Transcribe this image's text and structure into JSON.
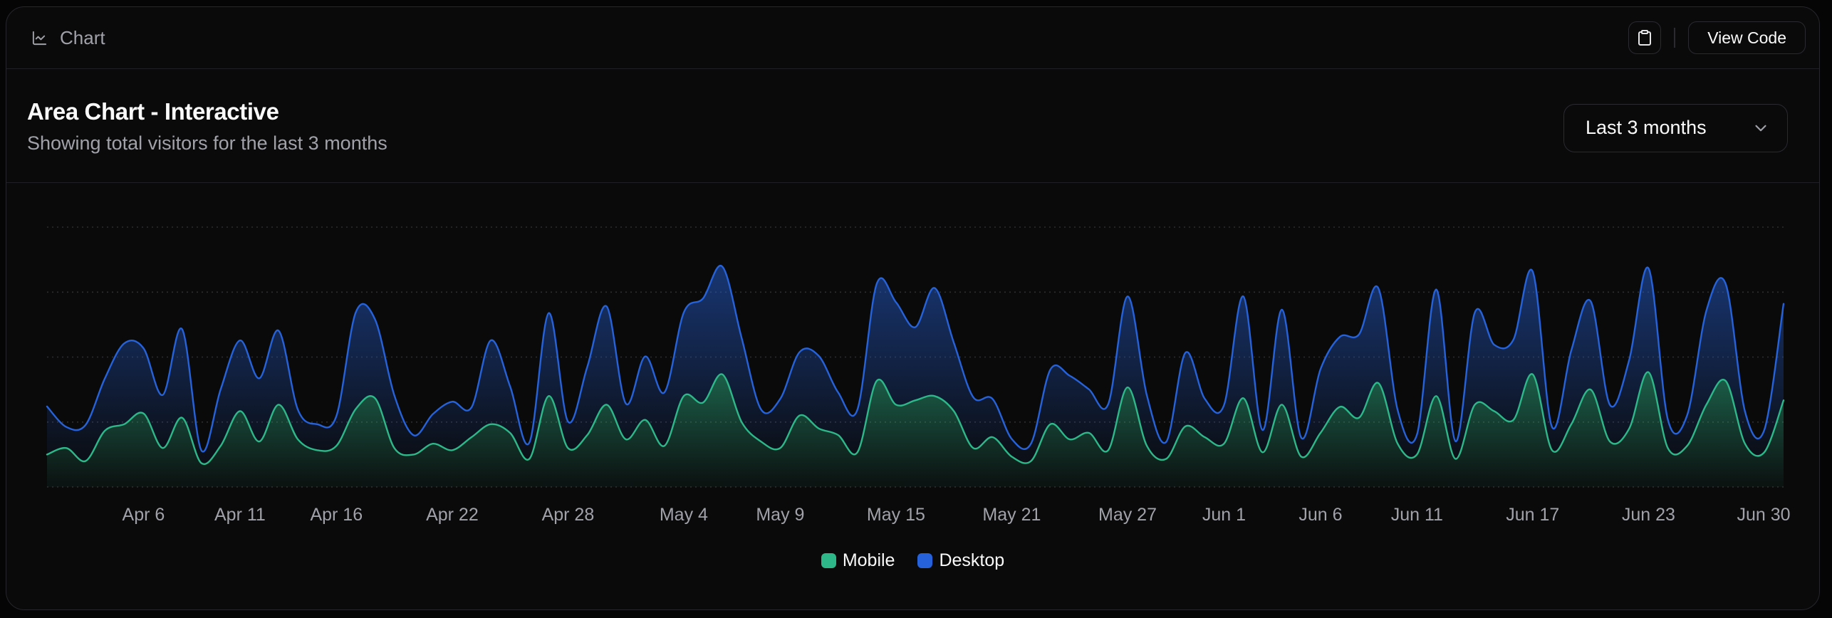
{
  "toolbar": {
    "title": "Chart",
    "view_code_label": "View Code"
  },
  "icons": {
    "toolbar_icon": "chart-line",
    "copy_button_icon": "clipboard",
    "range_select_icon": "chevron-down"
  },
  "card": {
    "title": "Area Chart - Interactive",
    "description": "Showing total visitors for the last 3 months",
    "time_range": {
      "selected": "Last 3 months"
    }
  },
  "chart_data": {
    "type": "area",
    "stacked": true,
    "curve": "natural",
    "grid": "horizontal-dotted",
    "legend_position": "bottom",
    "ylim": [
      0,
      1200
    ],
    "y_gridlines": [
      0,
      300,
      600,
      900,
      1200
    ],
    "x": [
      "2024-04-01",
      "2024-04-02",
      "2024-04-03",
      "2024-04-04",
      "2024-04-05",
      "2024-04-06",
      "2024-04-07",
      "2024-04-08",
      "2024-04-09",
      "2024-04-10",
      "2024-04-11",
      "2024-04-12",
      "2024-04-13",
      "2024-04-14",
      "2024-04-15",
      "2024-04-16",
      "2024-04-17",
      "2024-04-18",
      "2024-04-19",
      "2024-04-20",
      "2024-04-21",
      "2024-04-22",
      "2024-04-23",
      "2024-04-24",
      "2024-04-25",
      "2024-04-26",
      "2024-04-27",
      "2024-04-28",
      "2024-04-29",
      "2024-04-30",
      "2024-05-01",
      "2024-05-02",
      "2024-05-03",
      "2024-05-04",
      "2024-05-05",
      "2024-05-06",
      "2024-05-07",
      "2024-05-08",
      "2024-05-09",
      "2024-05-10",
      "2024-05-11",
      "2024-05-12",
      "2024-05-13",
      "2024-05-14",
      "2024-05-15",
      "2024-05-16",
      "2024-05-17",
      "2024-05-18",
      "2024-05-19",
      "2024-05-20",
      "2024-05-21",
      "2024-05-22",
      "2024-05-23",
      "2024-05-24",
      "2024-05-25",
      "2024-05-26",
      "2024-05-27",
      "2024-05-28",
      "2024-05-29",
      "2024-05-30",
      "2024-05-31",
      "2024-06-01",
      "2024-06-02",
      "2024-06-03",
      "2024-06-04",
      "2024-06-05",
      "2024-06-06",
      "2024-06-07",
      "2024-06-08",
      "2024-06-09",
      "2024-06-10",
      "2024-06-11",
      "2024-06-12",
      "2024-06-13",
      "2024-06-14",
      "2024-06-15",
      "2024-06-16",
      "2024-06-17",
      "2024-06-18",
      "2024-06-19",
      "2024-06-20",
      "2024-06-21",
      "2024-06-22",
      "2024-06-23",
      "2024-06-24",
      "2024-06-25",
      "2024-06-26",
      "2024-06-27",
      "2024-06-28",
      "2024-06-29",
      "2024-06-30"
    ],
    "series": [
      {
        "name": "Mobile",
        "color": "#2eb88a",
        "values": [
          150,
          180,
          120,
          260,
          290,
          340,
          180,
          320,
          110,
          190,
          350,
          210,
          380,
          220,
          170,
          190,
          360,
          410,
          180,
          150,
          200,
          170,
          230,
          290,
          250,
          130,
          420,
          180,
          240,
          380,
          220,
          310,
          190,
          420,
          390,
          520,
          300,
          210,
          180,
          330,
          270,
          240,
          160,
          490,
          380,
          400,
          420,
          350,
          180,
          230,
          140,
          120,
          290,
          220,
          250,
          170,
          460,
          190,
          130,
          280,
          230,
          200,
          410,
          160,
          380,
          140,
          250,
          370,
          320,
          480,
          200,
          150,
          420,
          130,
          380,
          350,
          310,
          520,
          170,
          290,
          450,
          210,
          270,
          530,
          180,
          190,
          380,
          490,
          200,
          160,
          400
        ]
      },
      {
        "name": "Desktop",
        "color": "#2662d9",
        "values": [
          222,
          97,
          167,
          242,
          373,
          301,
          245,
          409,
          59,
          261,
          327,
          292,
          342,
          137,
          120,
          138,
          446,
          364,
          243,
          89,
          137,
          224,
          138,
          387,
          215,
          75,
          383,
          122,
          315,
          454,
          165,
          293,
          247,
          385,
          481,
          498,
          388,
          149,
          227,
          293,
          335,
          197,
          197,
          448,
          473,
          338,
          499,
          315,
          235,
          177,
          82,
          81,
          252,
          294,
          201,
          213,
          420,
          233,
          78,
          340,
          178,
          178,
          470,
          103,
          439,
          88,
          294,
          323,
          385,
          438,
          155,
          92,
          492,
          81,
          426,
          307,
          371,
          475,
          107,
          341,
          408,
          169,
          317,
          480,
          132,
          141,
          434,
          448,
          149,
          103,
          446
        ]
      }
    ],
    "x_ticks": [
      {
        "label": "Apr 6",
        "index": 5
      },
      {
        "label": "Apr 11",
        "index": 10
      },
      {
        "label": "Apr 16",
        "index": 15
      },
      {
        "label": "Apr 22",
        "index": 21
      },
      {
        "label": "Apr 28",
        "index": 27
      },
      {
        "label": "May 4",
        "index": 33
      },
      {
        "label": "May 9",
        "index": 38
      },
      {
        "label": "May 15",
        "index": 44
      },
      {
        "label": "May 21",
        "index": 50
      },
      {
        "label": "May 27",
        "index": 56
      },
      {
        "label": "Jun 1",
        "index": 61
      },
      {
        "label": "Jun 6",
        "index": 66
      },
      {
        "label": "Jun 11",
        "index": 71
      },
      {
        "label": "Jun 17",
        "index": 77
      },
      {
        "label": "Jun 23",
        "index": 83
      },
      {
        "label": "Jun 30",
        "index": 90
      }
    ]
  }
}
